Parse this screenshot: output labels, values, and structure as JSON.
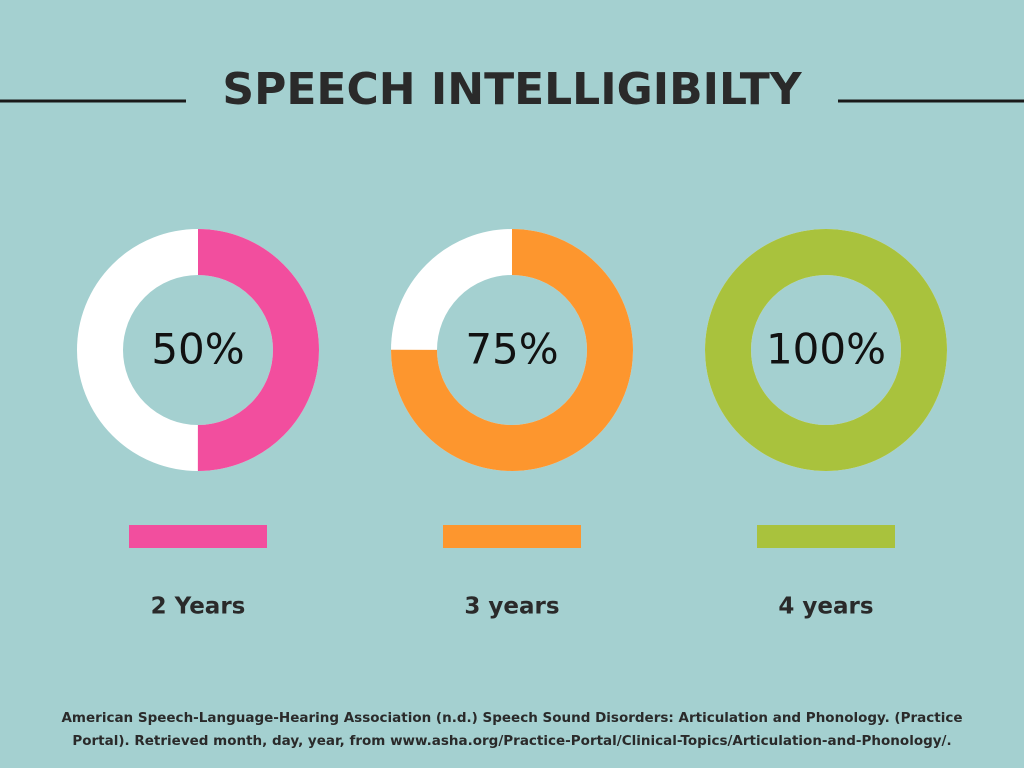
{
  "title": "SPEECH INTELLIGIBILTY",
  "source": [
    "American Speech-Language-Hearing Association (n.d.) Speech Sound Disorders: Articulation and Phonology. (Practice",
    "Portal). Retrieved month, day, year, from www.asha.org/Practice-Portal/Clinical-Topics/Articulation-and-Phonology/."
  ],
  "chart_data": [
    {
      "type": "donut",
      "label": "2 Years",
      "values": [
        50
      ],
      "value_labels": [
        "50%"
      ],
      "color": "#f24e9e",
      "ylim": [
        0,
        100
      ]
    },
    {
      "type": "donut",
      "label": "3 years",
      "values": [
        75
      ],
      "value_labels": [
        "75%"
      ],
      "color": "#fd962e",
      "ylim": [
        0,
        100
      ]
    },
    {
      "type": "donut",
      "label": "4 years",
      "values": [
        100
      ],
      "value_labels": [
        "100%"
      ],
      "color": "#a9c23d",
      "ylim": [
        0,
        100
      ]
    }
  ]
}
